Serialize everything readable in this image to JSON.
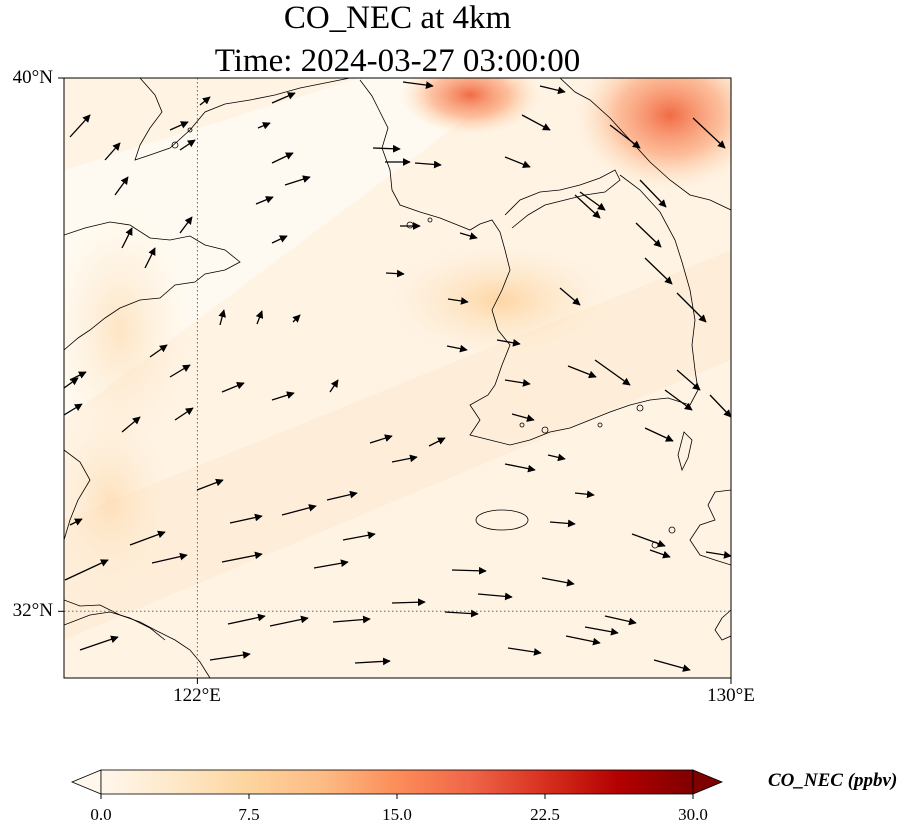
{
  "title_line1": "CO_NEC at 4km",
  "title_line2": "Time: 2024-03-27 03:00:00",
  "map": {
    "lat_range": [
      31,
      40
    ],
    "lon_range": [
      120,
      130
    ],
    "lat_labels": [
      {
        "value": 40,
        "label": "40°N"
      },
      {
        "value": 32,
        "label": "32°N"
      }
    ],
    "lon_labels": [
      {
        "value": 122,
        "label": "122°E"
      },
      {
        "value": 130,
        "label": "130°E"
      }
    ],
    "gridlines": {
      "lat": 32,
      "lon": 122,
      "style": "dotted"
    },
    "field_colors": {
      "low": "#fff5eb",
      "mid": "#fdd9a8",
      "high": "#f0643c"
    },
    "coastline_color": "#000000",
    "wind_arrow_color": "#000000"
  },
  "colorbar": {
    "label": "CO_NEC (ppbv)",
    "range": [
      0,
      30
    ],
    "extend": "both",
    "cmap": "OrRd",
    "stops": [
      "#fff7ec",
      "#fee8c8",
      "#fdd49e",
      "#fdbb84",
      "#fc8d59",
      "#ef6548",
      "#d7301f",
      "#b30000",
      "#7f0000"
    ],
    "ticks": [
      {
        "value": 0,
        "label": "0.0"
      },
      {
        "value": 7.5,
        "label": "7.5"
      },
      {
        "value": 15,
        "label": "15.0"
      },
      {
        "value": 22.5,
        "label": "22.5"
      },
      {
        "value": 30,
        "label": "30.0"
      }
    ]
  }
}
